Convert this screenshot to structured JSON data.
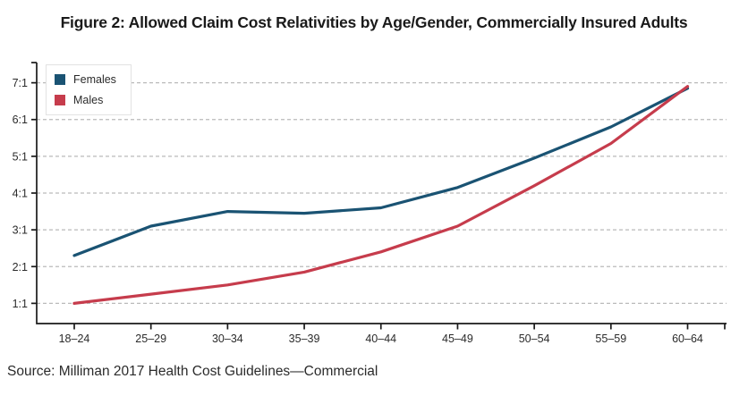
{
  "title": "Figure 2: Allowed Claim Cost Relativities by Age/Gender, Commercially Insured Adults",
  "source": "Source: Milliman 2017 Health Cost Guidelines—Commercial",
  "legend": {
    "items": [
      {
        "label": "Females",
        "color": "#1a5373"
      },
      {
        "label": "Males",
        "color": "#c63c4c"
      }
    ]
  },
  "chart_data": {
    "type": "line",
    "title": "Figure 2: Allowed Claim Cost Relativities by Age/Gender, Commercially Insured Adults",
    "xlabel": "",
    "ylabel": "",
    "categories": [
      "18–24",
      "25–29",
      "30–34",
      "35–39",
      "40–44",
      "45–49",
      "50–54",
      "55–59",
      "60–64"
    ],
    "series": [
      {
        "name": "Females",
        "color": "#1a5373",
        "values": [
          2.3,
          3.1,
          3.5,
          3.45,
          3.6,
          4.15,
          4.95,
          5.8,
          6.85
        ]
      },
      {
        "name": "Males",
        "color": "#c63c4c",
        "values": [
          1.0,
          1.25,
          1.5,
          1.85,
          2.4,
          3.1,
          4.2,
          5.35,
          6.9
        ]
      }
    ],
    "y_ticks": [
      "1:1",
      "2:1",
      "3:1",
      "4:1",
      "5:1",
      "6:1",
      "7:1"
    ],
    "y_tick_values": [
      1,
      2,
      3,
      4,
      5,
      6,
      7
    ],
    "ylim": [
      0.45,
      7.55
    ],
    "grid": "horizontal-dashed",
    "legend_position": "top-left",
    "colors": {
      "grid": "#bababa",
      "axis": "#1a1a1a",
      "tick_text": "#2b2b2b"
    }
  }
}
